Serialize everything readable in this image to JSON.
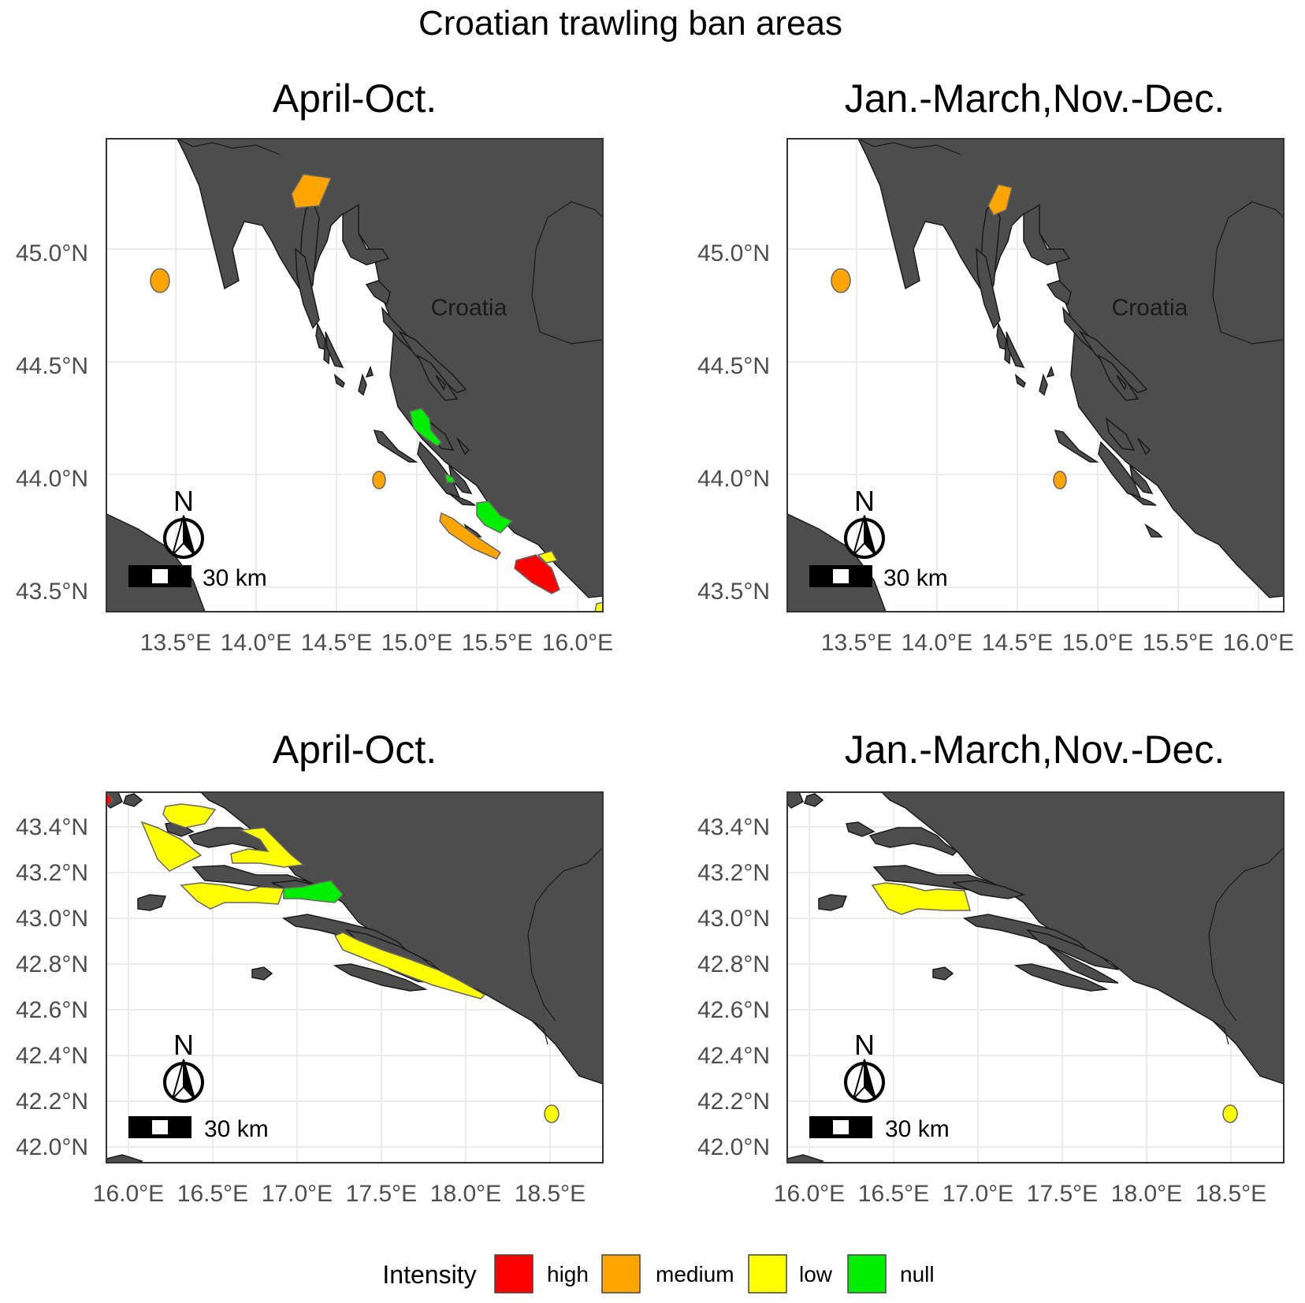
{
  "title": "Croatian trawling ban areas",
  "panels": [
    {
      "title": "April-Oct.",
      "x_ticks": [
        "13.5°E",
        "14.0°E",
        "14.5°E",
        "15.0°E",
        "15.5°E",
        "16.0°E"
      ],
      "y_ticks": [
        "45.0°N",
        "44.5°N",
        "44.0°N",
        "43.5°N"
      ],
      "country_label": "Croatia",
      "north_label": "N",
      "scale_label": "30 km"
    },
    {
      "title": "Jan.-March,Nov.-Dec.",
      "x_ticks": [
        "13.5°E",
        "14.0°E",
        "14.5°E",
        "15.0°E",
        "15.5°E",
        "16.0°E"
      ],
      "y_ticks": [
        "45.0°N",
        "44.5°N",
        "44.0°N",
        "43.5°N"
      ],
      "country_label": "Croatia",
      "north_label": "N",
      "scale_label": "30 km"
    },
    {
      "title": "April-Oct.",
      "x_ticks": [
        "16.0°E",
        "16.5°E",
        "17.0°E",
        "17.5°E",
        "18.0°E",
        "18.5°E"
      ],
      "y_ticks": [
        "43.4°N",
        "43.2°N",
        "43.0°N",
        "42.8°N",
        "42.6°N",
        "42.4°N",
        "42.2°N",
        "42.0°N"
      ],
      "north_label": "N",
      "scale_label": "30 km"
    },
    {
      "title": "Jan.-March,Nov.-Dec.",
      "x_ticks": [
        "16.0°E",
        "16.5°E",
        "17.0°E",
        "17.5°E",
        "18.0°E",
        "18.5°E"
      ],
      "y_ticks": [
        "43.4°N",
        "43.2°N",
        "43.0°N",
        "42.8°N",
        "42.6°N",
        "42.4°N",
        "42.2°N",
        "42.0°N"
      ],
      "north_label": "N",
      "scale_label": "30 km"
    }
  ],
  "legend": {
    "title": "Intensity",
    "items": [
      {
        "label": "high",
        "color": "#ff0000"
      },
      {
        "label": "medium",
        "color": "#ffa500"
      },
      {
        "label": "low",
        "color": "#ffff00"
      },
      {
        "label": "null",
        "color": "#00ee00"
      }
    ]
  },
  "colors": {
    "land": "#4d4d4d",
    "sea": "#ffffff",
    "grid": "#ebebeb",
    "high": "#ff0000",
    "medium": "#ffa500",
    "low": "#ffff00",
    "null": "#00ee00"
  }
}
